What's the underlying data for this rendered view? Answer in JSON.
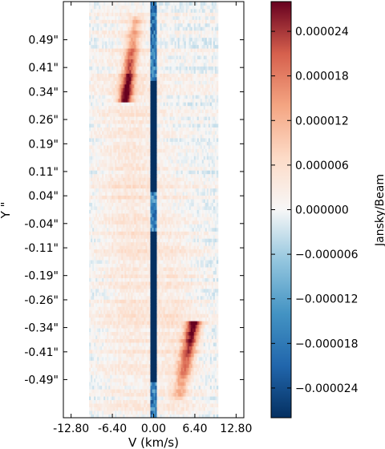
{
  "chart_data": {
    "type": "heatmap",
    "title": "",
    "xlabel": "V (km/s)",
    "ylabel": "Y \"",
    "xlim": [
      -14.0,
      14.0
    ],
    "ylim": [
      -0.6,
      0.6
    ],
    "x_ticks": [
      {
        "value": -12.8,
        "label": "-12.80"
      },
      {
        "value": -6.4,
        "label": "-6.40"
      },
      {
        "value": 0.0,
        "label": "0.00"
      },
      {
        "value": 6.4,
        "label": "6.40"
      },
      {
        "value": 12.8,
        "label": "12.80"
      }
    ],
    "y_ticks": [
      {
        "value": 0.49,
        "label": "0.49\""
      },
      {
        "value": 0.41,
        "label": "0.41\""
      },
      {
        "value": 0.34,
        "label": "0.34\""
      },
      {
        "value": 0.26,
        "label": "0.26\""
      },
      {
        "value": 0.19,
        "label": "0.19\""
      },
      {
        "value": 0.11,
        "label": "0.11\""
      },
      {
        "value": 0.04,
        "label": "0.04\""
      },
      {
        "value": -0.04,
        "label": "-0.04\""
      },
      {
        "value": -0.11,
        "label": "-0.11\""
      },
      {
        "value": -0.19,
        "label": "-0.19\""
      },
      {
        "value": -0.26,
        "label": "-0.26\""
      },
      {
        "value": -0.34,
        "label": "-0.34\""
      },
      {
        "value": -0.41,
        "label": "-0.41\""
      },
      {
        "value": -0.49,
        "label": "-0.49\""
      }
    ],
    "data_extent": {
      "x": [
        -10.0,
        10.0
      ],
      "y": [
        -0.6,
        0.6
      ]
    },
    "features": [
      {
        "kind": "vertical_band",
        "x": 0.0,
        "width": 1.0,
        "y_range": [
          -0.6,
          0.6
        ],
        "core_y_ranges": [
          [
            -0.5,
            -0.06
          ],
          [
            0.05,
            0.37
          ]
        ],
        "value": -3.5e-05
      },
      {
        "kind": "tilted_streak",
        "x_start": -2.8,
        "y_start": 0.54,
        "x_end": -4.3,
        "y_end": 0.33,
        "peak": 2.8e-05,
        "width": 0.7
      },
      {
        "kind": "tilted_streak",
        "x_start": 4.0,
        "y_start": -0.53,
        "x_end": 6.1,
        "y_end": -0.34,
        "peak": 2.8e-05,
        "width": 0.8
      },
      {
        "kind": "diffuse_blob",
        "x": -3.5,
        "y": 0.0,
        "sx": 3.5,
        "sy": 0.45,
        "peak": 4.5e-06
      },
      {
        "kind": "diffuse_blob",
        "x": 3.5,
        "y": -0.3,
        "sx": 2.5,
        "sy": 0.25,
        "peak": 3.5e-06
      }
    ],
    "colorbar": {
      "label": "Jansky/Beam",
      "vmin": -2.8e-05,
      "vmax": 2.8e-05,
      "colormap": "RdBu_r",
      "ticks": [
        {
          "value": 2.4e-05,
          "label": "0.000024"
        },
        {
          "value": 1.8e-05,
          "label": "0.000018"
        },
        {
          "value": 1.2e-05,
          "label": "0.000012"
        },
        {
          "value": 6e-06,
          "label": "0.000006"
        },
        {
          "value": 0.0,
          "label": "0.000000"
        },
        {
          "value": -6e-06,
          "label": "−0.000006"
        },
        {
          "value": -1.2e-05,
          "label": "−0.000012"
        },
        {
          "value": -1.8e-05,
          "label": "−0.000018"
        },
        {
          "value": -2.4e-05,
          "label": "−0.000024"
        }
      ]
    },
    "grid": false
  }
}
